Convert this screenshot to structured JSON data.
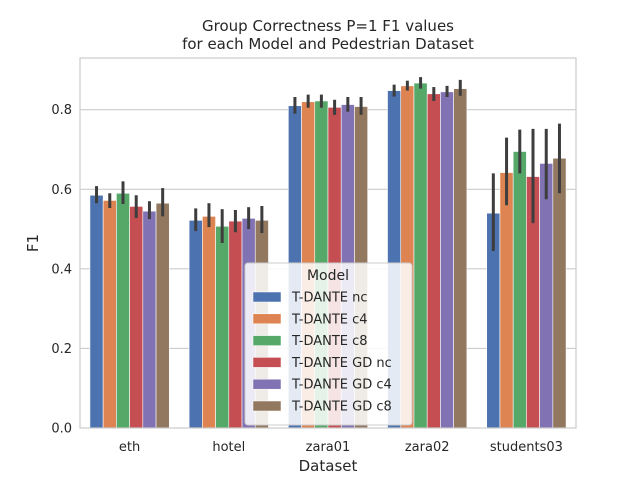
{
  "chart_data": {
    "type": "bar",
    "title": "Group Correctness P=1 F1 values\nfor each Model and Pedestrian Dataset",
    "xlabel": "Dataset",
    "ylabel": "F1",
    "ylim": [
      0,
      0.93
    ],
    "yticks": [
      0.0,
      0.2,
      0.4,
      0.6,
      0.8
    ],
    "grid": "y",
    "legend": {
      "title": "Model",
      "placement": "lower center"
    },
    "categories": [
      "eth",
      "hotel",
      "zara01",
      "zara02",
      "students03"
    ],
    "series": [
      {
        "name": "T-DANTE nc",
        "color": "#4c72b0",
        "values": [
          0.585,
          0.522,
          0.81,
          0.848,
          0.54
        ],
        "err_low": [
          0.565,
          0.495,
          0.79,
          0.833,
          0.445
        ],
        "err_high": [
          0.608,
          0.552,
          0.832,
          0.863,
          0.64
        ]
      },
      {
        "name": "T-DANTE c4",
        "color": "#dd8452",
        "values": [
          0.572,
          0.532,
          0.82,
          0.86,
          0.642
        ],
        "err_low": [
          0.553,
          0.505,
          0.805,
          0.848,
          0.56
        ],
        "err_high": [
          0.59,
          0.565,
          0.838,
          0.873,
          0.73
        ]
      },
      {
        "name": "T-DANTE c8",
        "color": "#55a868",
        "values": [
          0.59,
          0.507,
          0.822,
          0.867,
          0.695
        ],
        "err_low": [
          0.563,
          0.465,
          0.805,
          0.853,
          0.64
        ],
        "err_high": [
          0.62,
          0.55,
          0.838,
          0.882,
          0.75
        ]
      },
      {
        "name": "T-DANTE GD nc",
        "color": "#c44e52",
        "values": [
          0.557,
          0.52,
          0.806,
          0.84,
          0.632
        ],
        "err_low": [
          0.528,
          0.492,
          0.787,
          0.822,
          0.515
        ],
        "err_high": [
          0.585,
          0.548,
          0.825,
          0.857,
          0.752
        ]
      },
      {
        "name": "T-DANTE GD c4",
        "color": "#8172b3",
        "values": [
          0.545,
          0.527,
          0.813,
          0.845,
          0.665
        ],
        "err_low": [
          0.525,
          0.5,
          0.795,
          0.832,
          0.575
        ],
        "err_high": [
          0.57,
          0.555,
          0.832,
          0.86,
          0.752
        ]
      },
      {
        "name": "T-DANTE GD c8",
        "color": "#937860",
        "values": [
          0.565,
          0.522,
          0.808,
          0.853,
          0.678
        ],
        "err_low": [
          0.532,
          0.49,
          0.787,
          0.835,
          0.59
        ],
        "err_high": [
          0.603,
          0.558,
          0.832,
          0.875,
          0.765
        ]
      }
    ]
  }
}
